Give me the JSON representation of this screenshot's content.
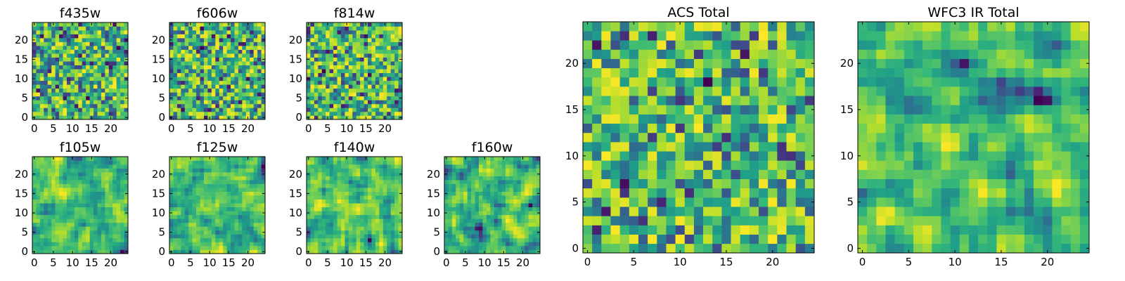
{
  "chart_data": [
    {
      "type": "heatmap",
      "title": "f435w",
      "grid_size": 25,
      "xlim": [
        -0.5,
        24.5
      ],
      "ylim": [
        -0.5,
        24.5
      ],
      "x_ticks": [
        0,
        5,
        10,
        15,
        20
      ],
      "y_ticks": [
        0,
        5,
        10,
        15,
        20
      ],
      "colormap": "viridis",
      "texture": "noisy",
      "seed": 11,
      "grid": false
    },
    {
      "type": "heatmap",
      "title": "f606w",
      "grid_size": 25,
      "xlim": [
        -0.5,
        24.5
      ],
      "ylim": [
        -0.5,
        24.5
      ],
      "x_ticks": [
        0,
        5,
        10,
        15,
        20
      ],
      "y_ticks": [
        0,
        5,
        10,
        15,
        20
      ],
      "colormap": "viridis",
      "texture": "noisy",
      "seed": 23,
      "grid": false
    },
    {
      "type": "heatmap",
      "title": "f814w",
      "grid_size": 25,
      "xlim": [
        -0.5,
        24.5
      ],
      "ylim": [
        -0.5,
        24.5
      ],
      "x_ticks": [
        0,
        5,
        10,
        15,
        20
      ],
      "y_ticks": [
        0,
        5,
        10,
        15,
        20
      ],
      "colormap": "viridis",
      "texture": "noisy",
      "seed": 37,
      "grid": false
    },
    {
      "type": "heatmap",
      "title": "f105w",
      "grid_size": 25,
      "xlim": [
        -0.5,
        24.5
      ],
      "ylim": [
        -0.5,
        24.5
      ],
      "x_ticks": [
        0,
        5,
        10,
        15,
        20
      ],
      "y_ticks": [
        0,
        5,
        10,
        15,
        20
      ],
      "colormap": "viridis",
      "texture": "smooth",
      "seed": 41,
      "grid": false
    },
    {
      "type": "heatmap",
      "title": "f125w",
      "grid_size": 25,
      "xlim": [
        -0.5,
        24.5
      ],
      "ylim": [
        -0.5,
        24.5
      ],
      "x_ticks": [
        0,
        5,
        10,
        15,
        20
      ],
      "y_ticks": [
        0,
        5,
        10,
        15,
        20
      ],
      "colormap": "viridis",
      "texture": "smooth",
      "seed": 53,
      "grid": false
    },
    {
      "type": "heatmap",
      "title": "f140w",
      "grid_size": 25,
      "xlim": [
        -0.5,
        24.5
      ],
      "ylim": [
        -0.5,
        24.5
      ],
      "x_ticks": [
        0,
        5,
        10,
        15,
        20
      ],
      "y_ticks": [
        0,
        5,
        10,
        15,
        20
      ],
      "colormap": "viridis",
      "texture": "smooth",
      "seed": 67,
      "grid": false
    },
    {
      "type": "heatmap",
      "title": "f160w",
      "grid_size": 25,
      "xlim": [
        -0.5,
        24.5
      ],
      "ylim": [
        -0.5,
        24.5
      ],
      "x_ticks": [
        0,
        5,
        10,
        15,
        20
      ],
      "y_ticks": [
        0,
        5,
        10,
        15,
        20
      ],
      "colormap": "viridis",
      "texture": "smooth",
      "seed": 79,
      "grid": false
    },
    {
      "type": "heatmap",
      "title": "ACS Total",
      "grid_size": 25,
      "xlim": [
        -0.5,
        24.5
      ],
      "ylim": [
        -0.5,
        24.5
      ],
      "x_ticks": [
        0,
        5,
        10,
        15,
        20
      ],
      "y_ticks": [
        0,
        5,
        10,
        15,
        20
      ],
      "colormap": "viridis",
      "texture": "noisy",
      "seed": 83,
      "grid": false
    },
    {
      "type": "heatmap",
      "title": "WFC3 IR Total",
      "grid_size": 25,
      "xlim": [
        -0.5,
        24.5
      ],
      "ylim": [
        -0.5,
        24.5
      ],
      "x_ticks": [
        0,
        5,
        10,
        15,
        20
      ],
      "y_ticks": [
        0,
        5,
        10,
        15,
        20
      ],
      "colormap": "viridis",
      "texture": "smooth",
      "seed": 97,
      "grid": false
    }
  ]
}
